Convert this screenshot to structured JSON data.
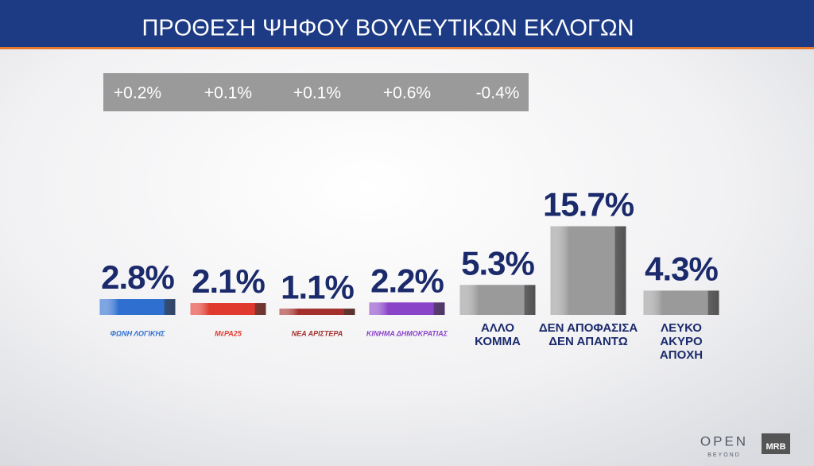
{
  "chart_data": {
    "type": "bar",
    "title": "ΠΡΟΘΕΣΗ ΨΗΦΟΥ ΒΟΥΛΕΥΤΙΚΩΝ ΕΚΛΟΓΩΝ",
    "categories": [
      [
        "ΦΩΝΗ ΛΟΓΙΚΗΣ"
      ],
      [
        "ΜέΡΑ25"
      ],
      [
        "ΝΕΑ ΑΡΙΣΤΕΡΑ"
      ],
      [
        "ΚΙΝΗΜΑ ΔΗΜΟΚΡΑΤΙΑΣ"
      ],
      [
        "ΑΛΛΟ",
        "ΚΟΜΜΑ"
      ],
      [
        "ΔΕΝ ΑΠΟΦΑΣΙΣΑ",
        "ΔΕΝ ΑΠΑΝΤΩ"
      ],
      [
        "ΛΕΥΚΟ",
        "ΑΚΥΡΟ",
        "ΑΠΟΧΗ"
      ]
    ],
    "values": [
      2.8,
      2.1,
      1.1,
      2.2,
      5.3,
      15.7,
      4.3
    ],
    "value_labels": [
      "2.8%",
      "2.1%",
      "1.1%",
      "2.2%",
      "5.3%",
      "15.7%",
      "4.3%"
    ],
    "colors": [
      "#2f6fd0",
      "#e03a2e",
      "#a3302c",
      "#8a44c8",
      "#9a9a9a",
      "#9a9a9a",
      "#9a9a9a"
    ],
    "changes": [
      0.2,
      0.1,
      0.1,
      0.6,
      -0.4
    ],
    "change_labels": [
      "+0.2%",
      "+0.1%",
      "+0.1%",
      "+0.6%",
      "-0.4%"
    ]
  },
  "branding": {
    "channel": "OPEN",
    "tagline": "BEYOND",
    "pollster": "MRB"
  }
}
